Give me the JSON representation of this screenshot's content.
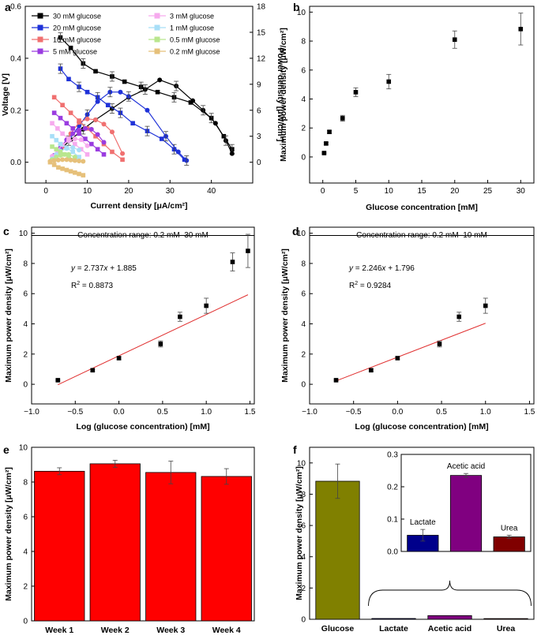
{
  "chart_data": [
    {
      "id": "a",
      "type": "line",
      "panel_label": "a",
      "xlabel": "Current density [μA/cm²]",
      "ylabel": "Voltage [V]",
      "ylabel_right": "Power density [μW/cm²]",
      "xlim": [
        -5,
        50
      ],
      "ylim": [
        -0.08,
        0.6
      ],
      "y2lim": [
        -2.4,
        18
      ],
      "x_ticks": [
        0,
        10,
        20,
        30,
        40
      ],
      "y_ticks": [
        "0.0",
        "0.2",
        "0.4",
        "0.6"
      ],
      "y2_ticks": [
        "0",
        "3",
        "6",
        "9",
        "12",
        "15",
        "18"
      ],
      "legend": [
        {
          "name": "30 mM glucose",
          "color": "#000000"
        },
        {
          "name": "20 mM glucose",
          "color": "#1f32d8"
        },
        {
          "name": "10 mM glucose",
          "color": "#f07070"
        },
        {
          "name": "5 mM glucose",
          "color": "#9a3ce0"
        },
        {
          "name": "3 mM glucose",
          "color": "#f6aaee"
        },
        {
          "name": "1 mM glucose",
          "color": "#a8dff7"
        },
        {
          "name": "0.5 mM glucose",
          "color": "#b9e68e"
        },
        {
          "name": "0.2 mM glucose",
          "color": "#e6c07a"
        }
      ],
      "series": [
        {
          "name": "30 mM glucose",
          "kind": "voltage",
          "x": [
            3.5,
            6,
            9,
            12,
            16,
            19,
            23,
            27,
            31,
            35,
            40,
            43,
            45
          ],
          "y": [
            0.48,
            0.44,
            0.38,
            0.35,
            0.33,
            0.31,
            0.29,
            0.27,
            0.25,
            0.23,
            0.17,
            0.1,
            0.05
          ]
        },
        {
          "name": "30 mM glucose",
          "kind": "power",
          "x": [
            3.5,
            6,
            9,
            12,
            16,
            20,
            24,
            27.5,
            31.5,
            35.5,
            38,
            41,
            43.5,
            45
          ],
          "y": [
            1.5,
            2.6,
            3.8,
            4.9,
            6.2,
            7.5,
            8.4,
            9.5,
            8.8,
            7.1,
            6,
            4.5,
            2.5,
            1
          ]
        },
        {
          "name": "20 mM glucose",
          "kind": "voltage",
          "x": [
            3.5,
            5.5,
            8,
            10,
            12.5,
            15,
            18,
            21,
            24.5,
            28,
            31,
            33.5
          ],
          "y": [
            0.36,
            0.32,
            0.29,
            0.27,
            0.25,
            0.22,
            0.19,
            0.15,
            0.12,
            0.09,
            0.05,
            0.01
          ]
        },
        {
          "name": "20 mM glucose",
          "kind": "power",
          "x": [
            5.5,
            8,
            10,
            12.5,
            15.5,
            18,
            20,
            24.5,
            29,
            32,
            34
          ],
          "y": [
            2.5,
            4.2,
            5.5,
            7,
            8.1,
            8.1,
            7.6,
            6,
            3,
            1.2,
            0.2
          ]
        },
        {
          "name": "10 mM glucose",
          "kind": "voltage",
          "x": [
            2,
            4,
            6,
            8,
            10,
            12,
            14,
            16,
            18.5
          ],
          "y": [
            0.25,
            0.22,
            0.19,
            0.16,
            0.13,
            0.1,
            0.07,
            0.04,
            0.01
          ]
        },
        {
          "name": "10 mM glucose",
          "kind": "power",
          "x": [
            2,
            4,
            6,
            8,
            10,
            12,
            14,
            16,
            18.5
          ],
          "y": [
            0.6,
            1.8,
            3.3,
            4.6,
            5,
            4.9,
            4.4,
            3.5,
            1
          ]
        },
        {
          "name": "5 mM glucose",
          "kind": "voltage",
          "x": [
            2,
            3.5,
            5,
            6.5,
            8,
            9.5,
            11,
            12.5,
            14
          ],
          "y": [
            0.19,
            0.17,
            0.15,
            0.13,
            0.11,
            0.09,
            0.07,
            0.05,
            0.03
          ]
        },
        {
          "name": "5 mM glucose",
          "kind": "power",
          "x": [
            2,
            3.5,
            5,
            6.5,
            8,
            9.5,
            11,
            12.5,
            14
          ],
          "y": [
            0.8,
            1.7,
            2.6,
            3.3,
            3.7,
            3.9,
            3.8,
            3.2,
            2.3
          ]
        },
        {
          "name": "3 mM glucose",
          "kind": "voltage",
          "x": [
            1.5,
            2.8,
            4,
            5.5,
            7,
            8.5,
            10
          ],
          "y": [
            0.15,
            0.13,
            0.11,
            0.09,
            0.07,
            0.05,
            0.03
          ]
        },
        {
          "name": "3 mM glucose",
          "kind": "power",
          "x": [
            1.5,
            2.8,
            4,
            5.5,
            7,
            8.5,
            10
          ],
          "y": [
            0.7,
            1.4,
            2,
            2.5,
            2.7,
            2.6,
            1.9
          ]
        },
        {
          "name": "1 mM glucose",
          "kind": "voltage",
          "x": [
            1.5,
            2.5,
            3.5,
            5,
            6.5,
            8
          ],
          "y": [
            0.1,
            0.085,
            0.07,
            0.055,
            0.04,
            0.02
          ]
        },
        {
          "name": "1 mM glucose",
          "kind": "power",
          "x": [
            1.5,
            2.5,
            3.5,
            5,
            6.5,
            8
          ],
          "y": [
            0.4,
            0.9,
            1.3,
            1.6,
            1.7,
            1.4
          ]
        },
        {
          "name": "0.5 mM glucose",
          "kind": "voltage",
          "x": [
            1.5,
            2.5,
            3.5,
            4.5,
            5.5,
            7
          ],
          "y": [
            0.06,
            0.05,
            0.04,
            0.03,
            0.02,
            0.01
          ]
        },
        {
          "name": "0.5 mM glucose",
          "kind": "power",
          "x": [
            1.5,
            2.5,
            3.5,
            4.5,
            5.5,
            7
          ],
          "y": [
            0.3,
            0.6,
            0.8,
            0.9,
            0.9,
            0.6
          ]
        },
        {
          "name": "0.2 mM glucose",
          "kind": "voltage",
          "x": [
            1,
            2,
            3,
            4,
            5,
            6,
            7,
            8,
            9
          ],
          "y": [
            0.0,
            -0.01,
            -0.02,
            -0.025,
            -0.03,
            -0.035,
            -0.04,
            -0.045,
            -0.05
          ]
        },
        {
          "name": "0.2 mM glucose",
          "kind": "power",
          "x": [
            1,
            2,
            3,
            4,
            5,
            6,
            7,
            8,
            9
          ],
          "y": [
            0.1,
            0.2,
            0.25,
            0.3,
            0.3,
            0.25,
            0.2,
            0.15,
            0.1
          ]
        }
      ]
    },
    {
      "id": "b",
      "type": "scatter",
      "panel_label": "b",
      "xlabel": "Glucose concentration [mM]",
      "ylabel": "Maximum power density [μW/cm²]",
      "xlim": [
        -2,
        32
      ],
      "ylim": [
        -1.8,
        10.4
      ],
      "x_ticks": [
        0,
        5,
        10,
        15,
        20,
        25,
        30
      ],
      "y_ticks": [
        0,
        2,
        4,
        6,
        8,
        10
      ],
      "x": [
        0.2,
        0.5,
        1,
        3,
        5,
        10,
        20,
        30
      ],
      "y": [
        0.27,
        0.93,
        1.73,
        2.67,
        4.47,
        5.2,
        8.1,
        8.83
      ],
      "err": [
        0.05,
        0.08,
        0.1,
        0.2,
        0.3,
        0.5,
        0.6,
        1.1
      ]
    },
    {
      "id": "c",
      "type": "scatter",
      "panel_label": "c",
      "xlabel": "Log (glucose concentration) [mM]",
      "ylabel": "Maximum power density [μW/cm²]",
      "xlim": [
        -1.0,
        1.55
      ],
      "ylim": [
        -1.3,
        10.4
      ],
      "x_ticks": [
        "-1.0",
        "-0.5",
        "0.0",
        "0.5",
        "1.0",
        "1.5"
      ],
      "y_ticks": [
        0,
        2,
        4,
        6,
        8,
        10
      ],
      "x": [
        -0.699,
        -0.301,
        0.0,
        0.477,
        0.699,
        1.0,
        1.301,
        1.477
      ],
      "y": [
        0.27,
        0.93,
        1.73,
        2.67,
        4.47,
        5.2,
        8.1,
        8.83
      ],
      "err": [
        0.05,
        0.08,
        0.1,
        0.2,
        0.3,
        0.5,
        0.6,
        1.1
      ],
      "fit": {
        "slope": 2.737,
        "intercept": 1.885,
        "x_range": [
          -0.699,
          1.477
        ]
      },
      "equation_var": "y",
      "equation_rest": " = 2.737",
      "equation_x": "x",
      "equation_tail": " + 1.885",
      "r2_base": "R",
      "r2_sup": "2",
      "r2_value": " = 0.8873",
      "range_label": "Concentration range: 0.2 mM–30 mM"
    },
    {
      "id": "d",
      "type": "scatter",
      "panel_label": "d",
      "xlabel": "Log (glucose concentration) [mM]",
      "ylabel": "Maximum power density [μW/cm²]",
      "xlim": [
        -1.0,
        1.55
      ],
      "ylim": [
        -1.3,
        10.4
      ],
      "x_ticks": [
        "-1.0",
        "-0.5",
        "0.0",
        "0.5",
        "1.0",
        "1.5"
      ],
      "y_ticks": [
        0,
        2,
        4,
        6,
        8,
        10
      ],
      "x": [
        -0.699,
        -0.301,
        0.0,
        0.477,
        0.699,
        1.0
      ],
      "y": [
        0.27,
        0.93,
        1.73,
        2.67,
        4.47,
        5.2
      ],
      "err": [
        0.05,
        0.08,
        0.1,
        0.2,
        0.3,
        0.5
      ],
      "fit": {
        "slope": 2.246,
        "intercept": 1.796,
        "x_range": [
          -0.699,
          1.0
        ]
      },
      "equation_var": "y",
      "equation_rest": " = 2.246",
      "equation_x": "x",
      "equation_tail": " + 1.796",
      "r2_base": "R",
      "r2_sup": "2",
      "r2_value": " = 0.9284",
      "range_label": "Concentration range: 0.2 mM–10 mM"
    },
    {
      "id": "e",
      "type": "bar",
      "panel_label": "e",
      "ylabel": "Maximum power density [μW/cm²]",
      "categories": [
        "Week 1",
        "Week 2",
        "Week 3",
        "Week 4"
      ],
      "values": [
        8.62,
        9.05,
        8.55,
        8.32
      ],
      "err": [
        0.2,
        0.2,
        0.65,
        0.45
      ],
      "colors": [
        "#ff0000",
        "#ff0000",
        "#ff0000",
        "#ff0000"
      ],
      "ylim": [
        0,
        10
      ],
      "y_ticks": [
        0,
        2,
        4,
        6,
        8,
        10
      ]
    },
    {
      "id": "f",
      "type": "bar",
      "panel_label": "f",
      "ylabel": "Maximum power density [μW/cm²]",
      "categories": [
        "Glucose",
        "Lactate",
        "Acetic acid",
        "Urea"
      ],
      "values": [
        8.83,
        0.05,
        0.235,
        0.045
      ],
      "err": [
        1.1,
        0,
        0,
        0
      ],
      "colors": [
        "#808000",
        "#00008b",
        "#800080",
        "#800000"
      ],
      "ylim": [
        0,
        11
      ],
      "y_ticks": [
        0,
        2,
        4,
        6,
        8,
        10
      ],
      "inset": {
        "categories": [
          "Lactate",
          "Acetic acid",
          "Urea"
        ],
        "values": [
          0.05,
          0.235,
          0.045
        ],
        "err": [
          0.018,
          0.006,
          0.005
        ],
        "colors": [
          "#00008b",
          "#800080",
          "#800000"
        ],
        "ylim": [
          0,
          0.3
        ],
        "y_ticks": [
          "0.0",
          "0.1",
          "0.2",
          "0.3"
        ]
      }
    }
  ]
}
